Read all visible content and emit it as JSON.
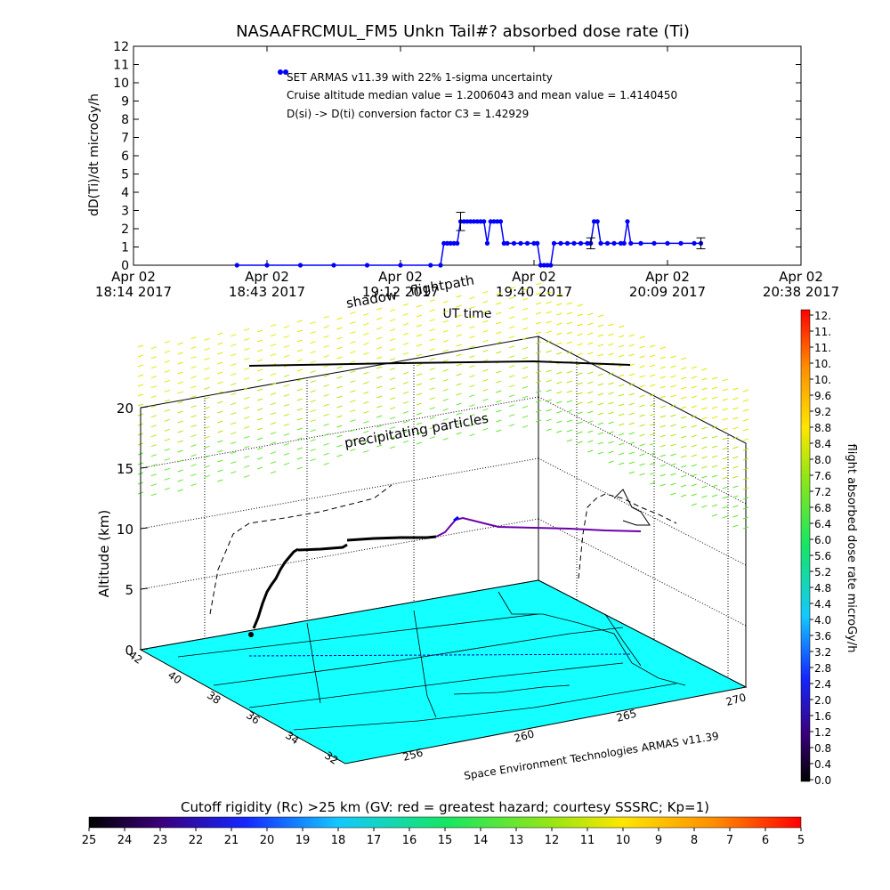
{
  "title": "NASAAFRCMUL_FM5 Unkn Tail#? absorbed dose rate (Ti)",
  "chart_data": [
    {
      "type": "line",
      "title": "NASAAFRCMUL_FM5 Unkn Tail#? absorbed dose rate (Ti)",
      "ylabel": "dD(Ti)/dt microGy/h",
      "xlabel": "UT time",
      "ylim": [
        0,
        12
      ],
      "yticks": [
        "0",
        "1",
        "2",
        "3",
        "4",
        "5",
        "6",
        "7",
        "8",
        "9",
        "10",
        "11",
        "12"
      ],
      "xticks": [
        {
          "l1": "Apr 02",
          "l2": "18:14 2017"
        },
        {
          "l1": "Apr 02",
          "l2": "18:43 2017"
        },
        {
          "l1": "Apr 02",
          "l2": "19:12 2017"
        },
        {
          "l1": "Apr 02",
          "l2": "19:40 2017"
        },
        {
          "l1": "Apr 02",
          "l2": "20:09 2017"
        },
        {
          "l1": "Apr 02",
          "l2": "20:38 2017"
        }
      ],
      "legend": [
        "SET ARMAS v11.39 with 22% 1-sigma uncertainty",
        "Cruise altitude median value = 1.2006043 and mean value = 1.4140450",
        "D(si) -> D(ti) conversion factor C3 = 1.42929"
      ],
      "series": [
        {
          "color": "#0000ff",
          "points": [
            [
              0.155,
              0
            ],
            [
              0.2,
              0
            ],
            [
              0.25,
              0
            ],
            [
              0.3,
              0
            ],
            [
              0.35,
              0
            ],
            [
              0.4,
              0
            ],
            [
              0.445,
              0
            ],
            [
              0.46,
              0
            ],
            [
              0.465,
              1.2
            ],
            [
              0.47,
              1.2
            ],
            [
              0.475,
              1.2
            ],
            [
              0.48,
              1.2
            ],
            [
              0.485,
              1.2
            ],
            [
              0.49,
              2.4
            ],
            [
              0.495,
              2.4
            ],
            [
              0.5,
              2.4
            ],
            [
              0.505,
              2.4
            ],
            [
              0.51,
              2.4
            ],
            [
              0.515,
              2.4
            ],
            [
              0.52,
              2.4
            ],
            [
              0.525,
              2.4
            ],
            [
              0.53,
              1.2
            ],
            [
              0.535,
              2.4
            ],
            [
              0.54,
              2.4
            ],
            [
              0.545,
              2.4
            ],
            [
              0.55,
              2.4
            ],
            [
              0.555,
              1.2
            ],
            [
              0.56,
              1.2
            ],
            [
              0.57,
              1.2
            ],
            [
              0.58,
              1.2
            ],
            [
              0.59,
              1.2
            ],
            [
              0.6,
              1.2
            ],
            [
              0.605,
              1.2
            ],
            [
              0.61,
              0
            ],
            [
              0.615,
              0
            ],
            [
              0.62,
              0
            ],
            [
              0.625,
              0
            ],
            [
              0.63,
              1.2
            ],
            [
              0.64,
              1.2
            ],
            [
              0.65,
              1.2
            ],
            [
              0.66,
              1.2
            ],
            [
              0.67,
              1.2
            ],
            [
              0.68,
              1.2
            ],
            [
              0.685,
              1.2
            ],
            [
              0.69,
              2.4
            ],
            [
              0.695,
              2.4
            ],
            [
              0.7,
              1.2
            ],
            [
              0.71,
              1.2
            ],
            [
              0.72,
              1.2
            ],
            [
              0.73,
              1.2
            ],
            [
              0.735,
              1.2
            ],
            [
              0.74,
              2.4
            ],
            [
              0.745,
              1.2
            ],
            [
              0.76,
              1.2
            ],
            [
              0.78,
              1.2
            ],
            [
              0.8,
              1.2
            ],
            [
              0.82,
              1.2
            ],
            [
              0.84,
              1.2
            ],
            [
              0.85,
              1.2
            ]
          ],
          "error_bars": [
            [
              0.49,
              2.4,
              0.5
            ],
            [
              0.685,
              1.2,
              0.3
            ],
            [
              0.85,
              1.2,
              0.3
            ]
          ]
        }
      ]
    },
    {
      "type": "scatter",
      "ylabel": "Altitude (km)",
      "zticks": [
        "0",
        "5",
        "10",
        "15",
        "20"
      ],
      "lat_ticks": [
        "42",
        "40",
        "38",
        "36",
        "34",
        "32"
      ],
      "lon_ticks": [
        "256",
        "260",
        "265",
        "270"
      ],
      "annotations": [
        "shadow",
        "flightpath",
        "precipitating particles"
      ],
      "footer": "Space Environment Technologies ARMAS v11.39",
      "right_colorbar": {
        "label": "flight absorbed dose rate microGy/h",
        "ticks": [
          "0.0",
          "0.4",
          "0.8",
          "1.2",
          "1.6",
          "2.0",
          "2.4",
          "2.8",
          "3.2",
          "3.6",
          "4.0",
          "4.4",
          "4.8",
          "5.2",
          "5.6",
          "6.0",
          "6.4",
          "6.8",
          "7.2",
          "7.6",
          "8.0",
          "8.4",
          "8.8",
          "9.2",
          "9.6",
          "10.",
          "10.",
          "11.",
          "11.",
          "12."
        ]
      },
      "bottom_colorbar": {
        "label": "Cutoff rigidity (Rc) >25 km (GV: red = greatest hazard; courtesy SSSRC; Kp=1)",
        "ticks": [
          "25",
          "24",
          "23",
          "22",
          "21",
          "20",
          "19",
          "18",
          "17",
          "16",
          "15",
          "14",
          "13",
          "12",
          "11",
          "10",
          "9",
          "8",
          "7",
          "6",
          "5"
        ]
      }
    }
  ]
}
